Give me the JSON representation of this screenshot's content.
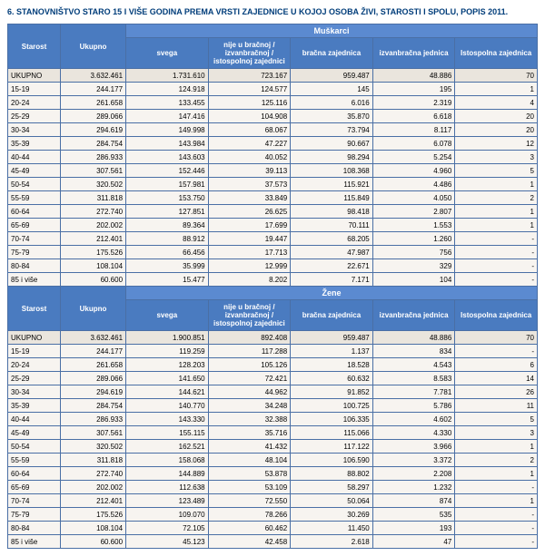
{
  "title": "6. STANOVNIŠTVO STARO 15 I VIŠE GODINA PREMA VRSTI ZAJEDNICE U KOJOJ OSOBA ŽIVI, STAROSTI I SPOLU, POPIS 2011.",
  "colors": {
    "header_bg": "#4a7bc0",
    "group_header_bg": "#5b8ad0",
    "header_text": "#ffffff",
    "border": "#4a6fa5",
    "cell_bg": "#f7f4f0",
    "total_bg": "#eae5dd",
    "title_color": "#003d7a"
  },
  "headers": {
    "starost": "Starost",
    "ukupno": "Ukupno",
    "muskarci": "Muškarci",
    "zene": "Žene",
    "svega": "svega",
    "nije_u": "nije u bračnoj / izvanbračnoj / istospolnoj zajednici",
    "bracna": "bračna zajednica",
    "izvanbracna": "izvanbračna jednica",
    "istospolna": "Istospolna zajednica"
  },
  "sections": [
    {
      "group": "muskarci",
      "rows": [
        {
          "label": "UKUPNO",
          "ukupno": "3.632.461",
          "c1": "1.731.610",
          "c2": "723.167",
          "c3": "959.487",
          "c4": "48.886",
          "c5": "70",
          "total": true
        },
        {
          "label": "15-19",
          "ukupno": "244.177",
          "c1": "124.918",
          "c2": "124.577",
          "c3": "145",
          "c4": "195",
          "c5": "1"
        },
        {
          "label": "20-24",
          "ukupno": "261.658",
          "c1": "133.455",
          "c2": "125.116",
          "c3": "6.016",
          "c4": "2.319",
          "c5": "4"
        },
        {
          "label": "25-29",
          "ukupno": "289.066",
          "c1": "147.416",
          "c2": "104.908",
          "c3": "35.870",
          "c4": "6.618",
          "c5": "20"
        },
        {
          "label": "30-34",
          "ukupno": "294.619",
          "c1": "149.998",
          "c2": "68.067",
          "c3": "73.794",
          "c4": "8.117",
          "c5": "20"
        },
        {
          "label": "35-39",
          "ukupno": "284.754",
          "c1": "143.984",
          "c2": "47.227",
          "c3": "90.667",
          "c4": "6.078",
          "c5": "12"
        },
        {
          "label": "40-44",
          "ukupno": "286.933",
          "c1": "143.603",
          "c2": "40.052",
          "c3": "98.294",
          "c4": "5.254",
          "c5": "3"
        },
        {
          "label": "45-49",
          "ukupno": "307.561",
          "c1": "152.446",
          "c2": "39.113",
          "c3": "108.368",
          "c4": "4.960",
          "c5": "5"
        },
        {
          "label": "50-54",
          "ukupno": "320.502",
          "c1": "157.981",
          "c2": "37.573",
          "c3": "115.921",
          "c4": "4.486",
          "c5": "1"
        },
        {
          "label": "55-59",
          "ukupno": "311.818",
          "c1": "153.750",
          "c2": "33.849",
          "c3": "115.849",
          "c4": "4.050",
          "c5": "2"
        },
        {
          "label": "60-64",
          "ukupno": "272.740",
          "c1": "127.851",
          "c2": "26.625",
          "c3": "98.418",
          "c4": "2.807",
          "c5": "1"
        },
        {
          "label": "65-69",
          "ukupno": "202.002",
          "c1": "89.364",
          "c2": "17.699",
          "c3": "70.111",
          "c4": "1.553",
          "c5": "1"
        },
        {
          "label": "70-74",
          "ukupno": "212.401",
          "c1": "88.912",
          "c2": "19.447",
          "c3": "68.205",
          "c4": "1.260",
          "c5": "-"
        },
        {
          "label": "75-79",
          "ukupno": "175.526",
          "c1": "66.456",
          "c2": "17.713",
          "c3": "47.987",
          "c4": "756",
          "c5": "-"
        },
        {
          "label": "80-84",
          "ukupno": "108.104",
          "c1": "35.999",
          "c2": "12.999",
          "c3": "22.671",
          "c4": "329",
          "c5": "-"
        },
        {
          "label": "85 i više",
          "ukupno": "60.600",
          "c1": "15.477",
          "c2": "8.202",
          "c3": "7.171",
          "c4": "104",
          "c5": "-"
        }
      ]
    },
    {
      "group": "zene",
      "rows": [
        {
          "label": "UKUPNO",
          "ukupno": "3.632.461",
          "c1": "1.900.851",
          "c2": "892.408",
          "c3": "959.487",
          "c4": "48.886",
          "c5": "70",
          "total": true
        },
        {
          "label": "15-19",
          "ukupno": "244.177",
          "c1": "119.259",
          "c2": "117.288",
          "c3": "1.137",
          "c4": "834",
          "c5": "-"
        },
        {
          "label": "20-24",
          "ukupno": "261.658",
          "c1": "128.203",
          "c2": "105.126",
          "c3": "18.528",
          "c4": "4.543",
          "c5": "6"
        },
        {
          "label": "25-29",
          "ukupno": "289.066",
          "c1": "141.650",
          "c2": "72.421",
          "c3": "60.632",
          "c4": "8.583",
          "c5": "14"
        },
        {
          "label": "30-34",
          "ukupno": "294.619",
          "c1": "144.621",
          "c2": "44.962",
          "c3": "91.852",
          "c4": "7.781",
          "c5": "26"
        },
        {
          "label": "35-39",
          "ukupno": "284.754",
          "c1": "140.770",
          "c2": "34.248",
          "c3": "100.725",
          "c4": "5.786",
          "c5": "11"
        },
        {
          "label": "40-44",
          "ukupno": "286.933",
          "c1": "143.330",
          "c2": "32.388",
          "c3": "106.335",
          "c4": "4.602",
          "c5": "5"
        },
        {
          "label": "45-49",
          "ukupno": "307.561",
          "c1": "155.115",
          "c2": "35.716",
          "c3": "115.066",
          "c4": "4.330",
          "c5": "3"
        },
        {
          "label": "50-54",
          "ukupno": "320.502",
          "c1": "162.521",
          "c2": "41.432",
          "c3": "117.122",
          "c4": "3.966",
          "c5": "1"
        },
        {
          "label": "55-59",
          "ukupno": "311.818",
          "c1": "158.068",
          "c2": "48.104",
          "c3": "106.590",
          "c4": "3.372",
          "c5": "2"
        },
        {
          "label": "60-64",
          "ukupno": "272.740",
          "c1": "144.889",
          "c2": "53.878",
          "c3": "88.802",
          "c4": "2.208",
          "c5": "1"
        },
        {
          "label": "65-69",
          "ukupno": "202.002",
          "c1": "112.638",
          "c2": "53.109",
          "c3": "58.297",
          "c4": "1.232",
          "c5": "-"
        },
        {
          "label": "70-74",
          "ukupno": "212.401",
          "c1": "123.489",
          "c2": "72.550",
          "c3": "50.064",
          "c4": "874",
          "c5": "1"
        },
        {
          "label": "75-79",
          "ukupno": "175.526",
          "c1": "109.070",
          "c2": "78.266",
          "c3": "30.269",
          "c4": "535",
          "c5": "-"
        },
        {
          "label": "80-84",
          "ukupno": "108.104",
          "c1": "72.105",
          "c2": "60.462",
          "c3": "11.450",
          "c4": "193",
          "c5": "-"
        },
        {
          "label": "85 i više",
          "ukupno": "60.600",
          "c1": "45.123",
          "c2": "42.458",
          "c3": "2.618",
          "c4": "47",
          "c5": "-"
        }
      ]
    }
  ]
}
